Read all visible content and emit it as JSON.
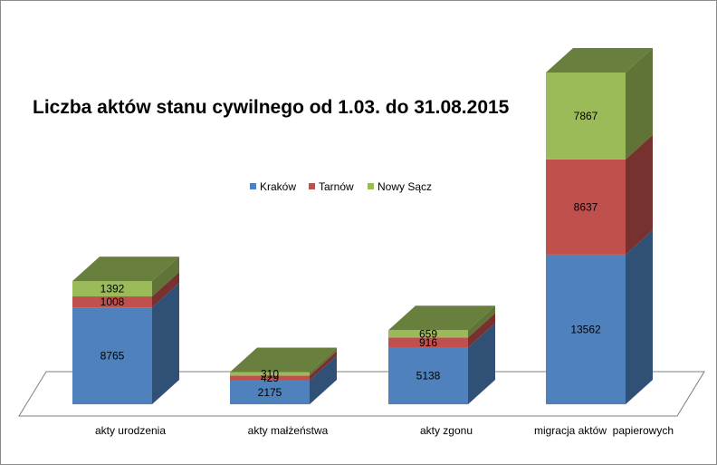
{
  "chart_data": {
    "type": "bar",
    "stacked": true,
    "style": "3d-column",
    "title": "Liczba aktów stanu cywilnego od 1.03. do 31.08.2015",
    "categories": [
      "akty urodzenia",
      "akty małżeństwa",
      "akty zgonu",
      "migracja aktów  papierowych"
    ],
    "series": [
      {
        "name": "Kraków",
        "values": [
          8765,
          2175,
          5138,
          13562
        ],
        "color": "#4F81BD"
      },
      {
        "name": "Tarnów",
        "values": [
          1008,
          429,
          916,
          8637
        ],
        "color": "#C0504D"
      },
      {
        "name": "Nowy Sącz",
        "values": [
          1392,
          310,
          659,
          7867
        ],
        "color": "#9BBB59"
      }
    ],
    "ylim": [
      0,
      30066
    ],
    "grid": false,
    "legend": "top-center"
  }
}
